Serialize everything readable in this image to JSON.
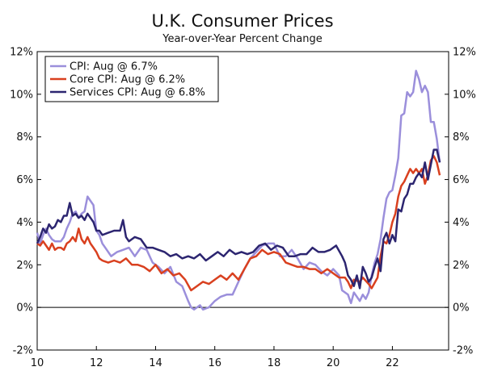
{
  "chart_data": {
    "type": "line",
    "title": "U.K. Consumer Prices",
    "subtitle": "Year-over-Year Percent Change",
    "xlabel": "",
    "ylabel": "",
    "xlim": [
      2010.0,
      2023.9
    ],
    "ylim": [
      -2,
      12
    ],
    "x_ticks": [
      10,
      12,
      14,
      16,
      18,
      20,
      22
    ],
    "x_tick_values": [
      2010,
      2012,
      2014,
      2016,
      2018,
      2020,
      2022
    ],
    "y_ticks": [
      "-2%",
      "0%",
      "2%",
      "4%",
      "6%",
      "8%",
      "10%",
      "12%"
    ],
    "y_tick_values": [
      -2,
      0,
      2,
      4,
      6,
      8,
      10,
      12
    ],
    "legend_position": "top-left",
    "grid": false,
    "series": [
      {
        "name": "CPI: Aug @ 6.7%",
        "color": "#9b8fdb",
        "x": [
          2010.0,
          2010.1,
          2010.2,
          2010.3,
          2010.4,
          2010.5,
          2010.6,
          2010.7,
          2010.8,
          2010.9,
          2011.0,
          2011.1,
          2011.2,
          2011.3,
          2011.4,
          2011.5,
          2011.6,
          2011.7,
          2011.8,
          2011.9,
          2012.0,
          2012.1,
          2012.2,
          2012.3,
          2012.5,
          2012.7,
          2012.9,
          2013.1,
          2013.3,
          2013.5,
          2013.7,
          2013.9,
          2014.1,
          2014.3,
          2014.5,
          2014.7,
          2014.9,
          2015.1,
          2015.2,
          2015.3,
          2015.5,
          2015.6,
          2015.8,
          2016.0,
          2016.2,
          2016.4,
          2016.6,
          2016.8,
          2017.0,
          2017.2,
          2017.4,
          2017.6,
          2017.8,
          2018.0,
          2018.2,
          2018.4,
          2018.6,
          2018.8,
          2019.0,
          2019.2,
          2019.4,
          2019.6,
          2019.8,
          2020.0,
          2020.2,
          2020.3,
          2020.5,
          2020.6,
          2020.7,
          2020.9,
          2021.0,
          2021.1,
          2021.2,
          2021.3,
          2021.4,
          2021.5,
          2021.6,
          2021.7,
          2021.8,
          2021.9,
          2022.0,
          2022.1,
          2022.2,
          2022.3,
          2022.4,
          2022.5,
          2022.6,
          2022.7,
          2022.8,
          2022.9,
          2023.0,
          2023.1,
          2023.2,
          2023.3,
          2023.4,
          2023.5,
          2023.6
        ],
        "values": [
          3.5,
          3.0,
          3.4,
          3.7,
          3.4,
          3.2,
          3.1,
          3.1,
          3.1,
          3.3,
          3.7,
          4.0,
          4.4,
          4.5,
          4.2,
          4.4,
          4.5,
          5.2,
          5.0,
          4.8,
          3.6,
          3.4,
          3.0,
          2.8,
          2.4,
          2.6,
          2.7,
          2.8,
          2.4,
          2.8,
          2.7,
          2.1,
          1.9,
          1.6,
          1.9,
          1.2,
          1.0,
          0.3,
          0.0,
          -0.1,
          0.1,
          -0.1,
          0.0,
          0.3,
          0.5,
          0.6,
          0.6,
          1.2,
          1.8,
          2.3,
          2.6,
          2.9,
          3.0,
          3.0,
          2.4,
          2.4,
          2.7,
          2.3,
          1.8,
          2.1,
          2.0,
          1.7,
          1.5,
          1.8,
          1.5,
          0.8,
          0.6,
          0.2,
          0.7,
          0.3,
          0.6,
          0.4,
          0.7,
          1.5,
          2.1,
          2.5,
          3.2,
          4.2,
          5.1,
          5.4,
          5.5,
          6.2,
          7.0,
          9.0,
          9.1,
          10.1,
          9.9,
          10.1,
          11.1,
          10.7,
          10.1,
          10.4,
          10.1,
          8.7,
          8.7,
          7.9,
          6.8
        ]
      },
      {
        "name": "Core CPI: Aug @ 6.2%",
        "color": "#d9401f",
        "x": [
          2010.0,
          2010.1,
          2010.2,
          2010.3,
          2010.4,
          2010.5,
          2010.6,
          2010.7,
          2010.8,
          2010.9,
          2011.0,
          2011.1,
          2011.2,
          2011.3,
          2011.4,
          2011.5,
          2011.6,
          2011.7,
          2011.8,
          2011.9,
          2012.0,
          2012.1,
          2012.2,
          2012.4,
          2012.6,
          2012.8,
          2013.0,
          2013.2,
          2013.4,
          2013.6,
          2013.8,
          2014.0,
          2014.2,
          2014.4,
          2014.6,
          2014.8,
          2015.0,
          2015.2,
          2015.4,
          2015.6,
          2015.8,
          2016.0,
          2016.2,
          2016.4,
          2016.6,
          2016.8,
          2017.0,
          2017.2,
          2017.4,
          2017.6,
          2017.8,
          2018.0,
          2018.2,
          2018.4,
          2018.6,
          2018.8,
          2019.0,
          2019.2,
          2019.4,
          2019.6,
          2019.8,
          2020.0,
          2020.2,
          2020.4,
          2020.5,
          2020.6,
          2020.7,
          2020.9,
          2021.0,
          2021.2,
          2021.3,
          2021.5,
          2021.6,
          2021.7,
          2021.8,
          2021.9,
          2022.0,
          2022.1,
          2022.2,
          2022.3,
          2022.4,
          2022.5,
          2022.6,
          2022.7,
          2022.8,
          2022.9,
          2023.0,
          2023.1,
          2023.2,
          2023.3,
          2023.4,
          2023.5,
          2023.6
        ],
        "values": [
          3.0,
          2.9,
          3.1,
          2.9,
          2.7,
          3.0,
          2.7,
          2.8,
          2.8,
          2.7,
          3.0,
          3.1,
          3.3,
          3.1,
          3.7,
          3.2,
          3.0,
          3.3,
          3.0,
          2.8,
          2.6,
          2.3,
          2.2,
          2.1,
          2.2,
          2.1,
          2.3,
          2.0,
          2.0,
          1.9,
          1.7,
          2.0,
          1.6,
          1.8,
          1.5,
          1.6,
          1.3,
          0.8,
          1.0,
          1.2,
          1.1,
          1.3,
          1.5,
          1.3,
          1.6,
          1.3,
          1.8,
          2.3,
          2.4,
          2.7,
          2.5,
          2.6,
          2.5,
          2.1,
          2.0,
          1.9,
          1.9,
          1.8,
          1.8,
          1.6,
          1.8,
          1.6,
          1.4,
          1.4,
          1.2,
          0.9,
          1.3,
          1.2,
          1.4,
          1.1,
          0.9,
          1.4,
          2.4,
          3.1,
          3.0,
          3.4,
          4.0,
          4.4,
          5.2,
          5.7,
          5.9,
          6.2,
          6.5,
          6.3,
          6.5,
          6.3,
          6.5,
          5.8,
          6.2,
          6.9,
          7.1,
          6.8,
          6.2
        ]
      },
      {
        "name": "Services CPI: Aug @ 6.8%",
        "color": "#2c2570",
        "x": [
          2010.0,
          2010.1,
          2010.2,
          2010.3,
          2010.4,
          2010.5,
          2010.6,
          2010.7,
          2010.8,
          2010.9,
          2011.0,
          2011.1,
          2011.2,
          2011.3,
          2011.4,
          2011.5,
          2011.6,
          2011.7,
          2011.8,
          2011.9,
          2012.0,
          2012.1,
          2012.2,
          2012.4,
          2012.6,
          2012.8,
          2012.9,
          2013.0,
          2013.1,
          2013.3,
          2013.5,
          2013.7,
          2013.9,
          2014.1,
          2014.3,
          2014.5,
          2014.7,
          2014.9,
          2015.1,
          2015.3,
          2015.5,
          2015.7,
          2015.9,
          2016.1,
          2016.3,
          2016.5,
          2016.7,
          2016.9,
          2017.1,
          2017.3,
          2017.5,
          2017.7,
          2017.9,
          2018.1,
          2018.3,
          2018.5,
          2018.7,
          2018.9,
          2019.1,
          2019.3,
          2019.5,
          2019.7,
          2019.9,
          2020.1,
          2020.3,
          2020.4,
          2020.5,
          2020.6,
          2020.7,
          2020.8,
          2020.9,
          2021.0,
          2021.1,
          2021.2,
          2021.3,
          2021.4,
          2021.5,
          2021.6,
          2021.7,
          2021.8,
          2021.9,
          2022.0,
          2022.1,
          2022.2,
          2022.3,
          2022.4,
          2022.5,
          2022.6,
          2022.7,
          2022.8,
          2022.9,
          2023.0,
          2023.1,
          2023.2,
          2023.3,
          2023.4,
          2023.5,
          2023.6
        ],
        "values": [
          3.0,
          3.3,
          3.7,
          3.5,
          3.9,
          3.7,
          3.8,
          4.1,
          4.0,
          4.3,
          4.3,
          4.9,
          4.3,
          4.4,
          4.2,
          4.3,
          4.1,
          4.4,
          4.2,
          4.0,
          3.6,
          3.6,
          3.4,
          3.5,
          3.6,
          3.6,
          4.1,
          3.3,
          3.1,
          3.3,
          3.2,
          2.8,
          2.8,
          2.7,
          2.6,
          2.4,
          2.5,
          2.3,
          2.4,
          2.3,
          2.5,
          2.2,
          2.4,
          2.6,
          2.4,
          2.7,
          2.5,
          2.6,
          2.5,
          2.6,
          2.9,
          3.0,
          2.7,
          2.9,
          2.8,
          2.4,
          2.4,
          2.5,
          2.5,
          2.8,
          2.6,
          2.6,
          2.7,
          2.9,
          2.4,
          2.1,
          1.5,
          1.3,
          1.0,
          1.5,
          0.9,
          1.9,
          1.6,
          1.2,
          1.4,
          1.9,
          2.3,
          1.7,
          3.2,
          3.5,
          3.0,
          3.4,
          3.1,
          4.6,
          4.5,
          5.1,
          5.3,
          5.8,
          5.8,
          6.1,
          6.3,
          6.1,
          6.8,
          6.0,
          6.7,
          7.4,
          7.4,
          6.8
        ]
      }
    ]
  }
}
